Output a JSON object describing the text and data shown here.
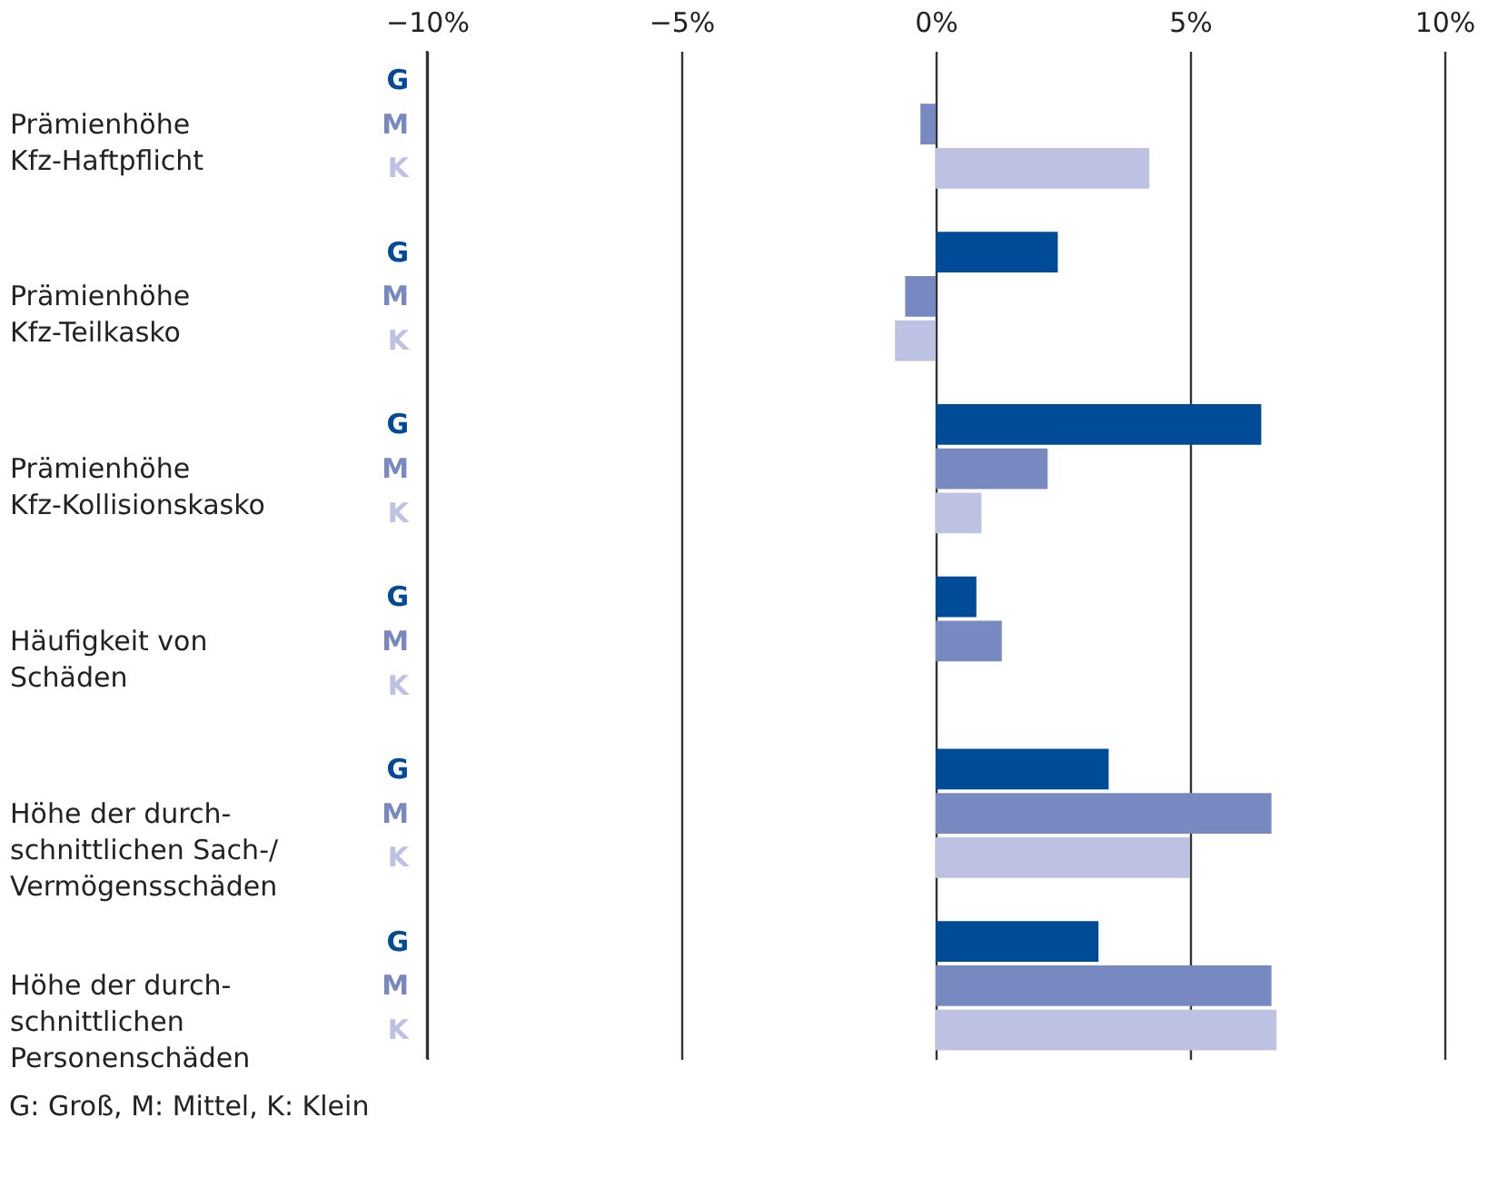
{
  "chart_data": {
    "type": "bar",
    "orientation": "horizontal",
    "categories": [
      "Prämienhöhe\nKfz-Haftpflicht",
      "Prämienhöhe\nKfz-Teilkasko",
      "Prämienhöhe\nKfz-Kollisionskasko",
      "Häufigkeit von\nSchäden",
      "Höhe der durch-\nschnittlichen Sach-/\nVermögensschäden",
      "Höhe der durch-\nschnittlichen\nPersonenschäden"
    ],
    "series": [
      {
        "name": "G",
        "color": "#004b98",
        "values": [
          null,
          2.4,
          6.4,
          0.8,
          3.4,
          3.2
        ]
      },
      {
        "name": "M",
        "color": "#7889c2",
        "values": [
          -0.3,
          -0.6,
          2.2,
          1.3,
          6.6,
          6.6
        ]
      },
      {
        "name": "K",
        "color": "#bdc2e3",
        "values": [
          4.2,
          -0.8,
          0.9,
          null,
          5.0,
          6.7
        ]
      }
    ],
    "xlim": [
      -10,
      10
    ],
    "xticks": [
      {
        "value": -10,
        "label": "−10%"
      },
      {
        "value": -5,
        "label": "−5%"
      },
      {
        "value": 0,
        "label": "0%"
      },
      {
        "value": 5,
        "label": "5%"
      },
      {
        "value": 10,
        "label": "10%"
      }
    ],
    "grid": "x",
    "legend": false,
    "annotations": [
      "G: Groß, M: Mittel, K: Klein"
    ]
  }
}
